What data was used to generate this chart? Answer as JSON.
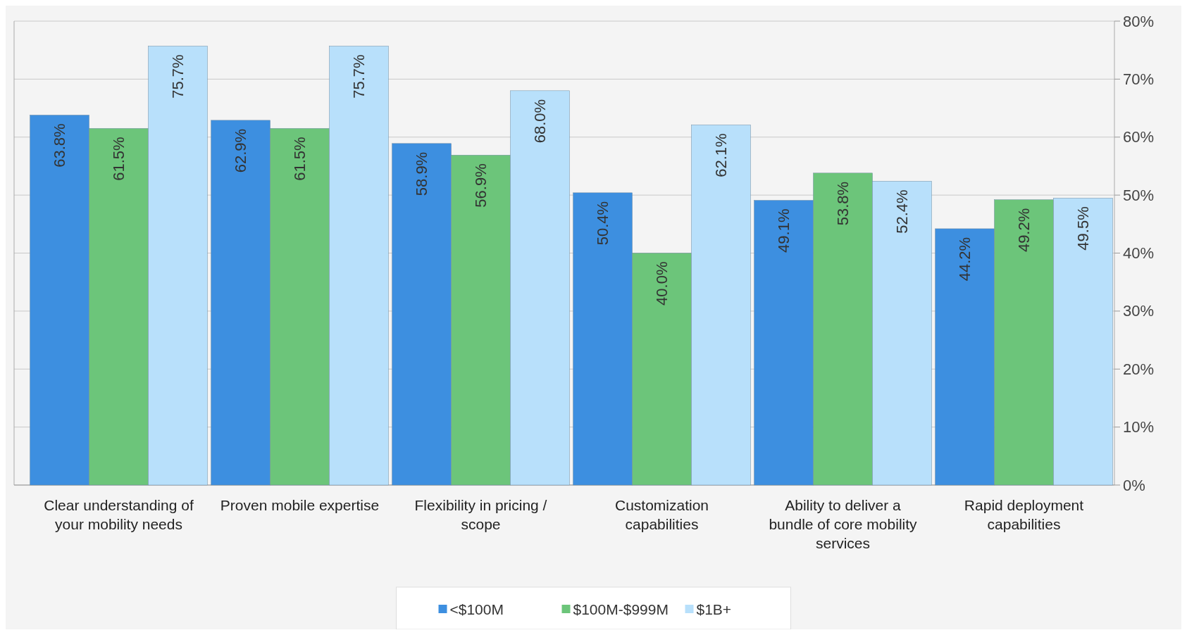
{
  "chart_data": {
    "type": "bar",
    "categories": [
      "Clear understanding of your mobility needs",
      "Proven mobile expertise",
      "Flexibility in pricing / scope",
      "Customization capabilities",
      "Ability to deliver a bundle of core mobility services",
      "Rapid deployment capabilities"
    ],
    "series": [
      {
        "name": "<$100M",
        "color": "#3d8fe0",
        "values": [
          63.8,
          62.9,
          58.9,
          50.4,
          49.1,
          44.2
        ],
        "value_labels": [
          "63.8%",
          "62.9%",
          "58.9%",
          "50.4%",
          "49.1%",
          "44.2%"
        ]
      },
      {
        "name": "$100M-$999M",
        "color": "#6cc57a",
        "values": [
          61.5,
          61.5,
          56.9,
          40.0,
          53.8,
          49.2
        ],
        "value_labels": [
          "61.5%",
          "61.5%",
          "56.9%",
          "40.0%",
          "53.8%",
          "49.2%"
        ]
      },
      {
        "name": "$1B+",
        "color": "#b8e0fb",
        "values": [
          75.7,
          75.7,
          68.0,
          62.1,
          52.4,
          49.5
        ],
        "value_labels": [
          "75.7%",
          "75.7%",
          "68.0%",
          "62.1%",
          "52.4%",
          "49.5%"
        ]
      }
    ],
    "ylim": [
      0,
      80
    ],
    "yticks": [
      {
        "value": 0,
        "label": "0%"
      },
      {
        "value": 10,
        "label": "10%"
      },
      {
        "value": 20,
        "label": "20%"
      },
      {
        "value": 30,
        "label": "30%"
      },
      {
        "value": 40,
        "label": "40%"
      },
      {
        "value": 50,
        "label": "50%"
      },
      {
        "value": 60,
        "label": "60%"
      },
      {
        "value": 70,
        "label": "70%"
      },
      {
        "value": 80,
        "label": "80%"
      }
    ],
    "grid": "y",
    "legend": "bottom"
  }
}
